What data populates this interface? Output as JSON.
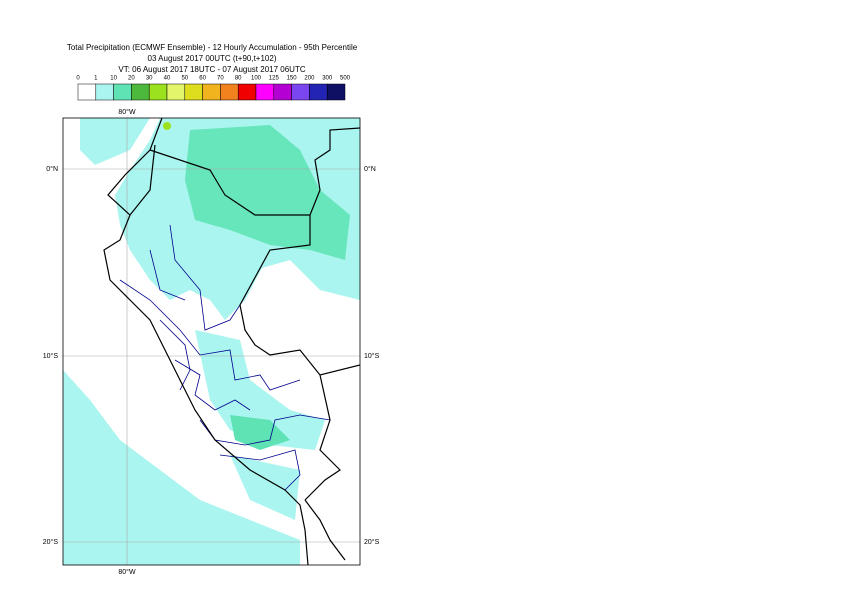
{
  "title": {
    "line1": "Total Precipitation (ECMWF Ensemble) - 12 Hourly Accumulation - 95th Percentile",
    "line2": "03 August 2017 00UTC (t+90,t+102)",
    "line3": "VT: 06 August 2017 18UTC - 07 August 2017 06UTC"
  },
  "legend": {
    "labels": [
      "0",
      "1",
      "10",
      "20",
      "30",
      "40",
      "50",
      "60",
      "70",
      "80",
      "100",
      "125",
      "150",
      "200",
      "300",
      "500"
    ],
    "colors": [
      "#ffffff",
      "#aaf5f0",
      "#5fe3b5",
      "#4cb83c",
      "#9be11e",
      "#e3f56a",
      "#dede1e",
      "#f2b41e",
      "#f2821e",
      "#f00000",
      "#ff00ff",
      "#b400d2",
      "#7a46f0",
      "#2323b4",
      "#0f0f64"
    ]
  },
  "map": {
    "lon_labels": [
      "80°W",
      "80°W"
    ],
    "lat_labels": [
      "0°N",
      "0°N",
      "10°S",
      "10°S",
      "20°S",
      "20°S"
    ]
  }
}
